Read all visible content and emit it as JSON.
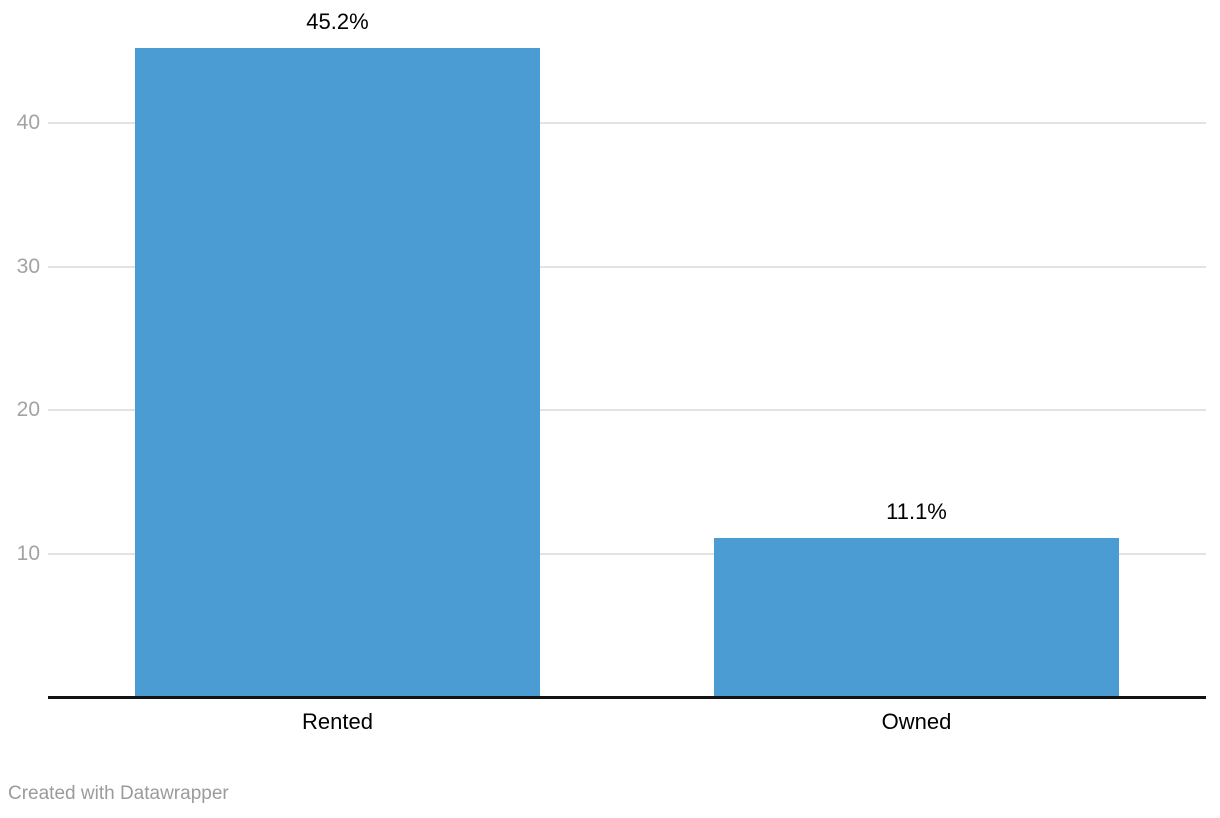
{
  "chart_data": {
    "type": "bar",
    "categories": [
      "Rented",
      "Owned"
    ],
    "values": [
      45.2,
      11.1
    ],
    "value_labels": [
      "45.2%",
      "11.1%"
    ],
    "title": "",
    "xlabel": "",
    "ylabel": "",
    "ylim": [
      0,
      46
    ],
    "yticks": [
      10,
      20,
      30,
      40
    ],
    "grid": true,
    "legend_position": "none",
    "value_suffix": "%"
  },
  "footer": {
    "credit": "Created with Datawrapper"
  },
  "colors": {
    "bar": "#4a9cd3",
    "gridline": "#e3e3e3",
    "axis_line": "#131313",
    "tick_label": "#a3a3a3",
    "data_label": "#000000",
    "credit": "#9b9b9b",
    "background": "#ffffff"
  }
}
